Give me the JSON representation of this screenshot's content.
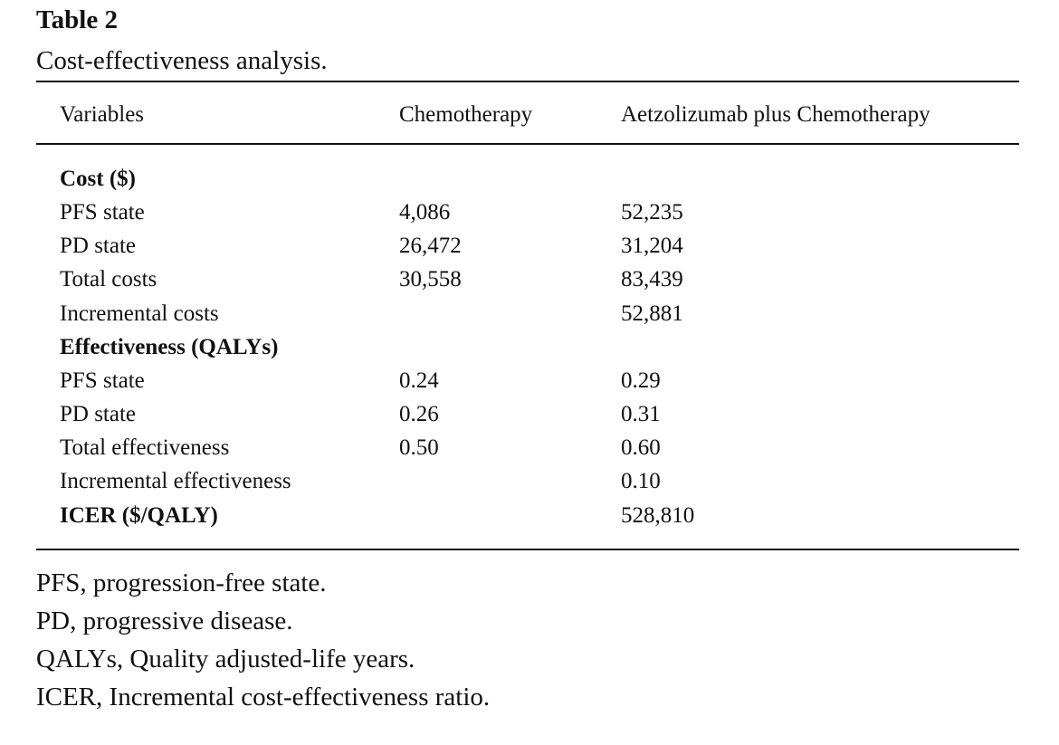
{
  "title": "Table 2",
  "caption": "Cost-effectiveness analysis.",
  "headers": {
    "variables": "Variables",
    "chemo": "Chemotherapy",
    "atezo": "Aetzolizumab plus Chemotherapy"
  },
  "sections": {
    "cost": "Cost ($)",
    "effectiveness": "Effectiveness (QALYs)",
    "icer": "ICER ($/QALY)"
  },
  "rows": {
    "cost_pfs": {
      "label": "PFS state",
      "chemo": "4,086",
      "atezo": "52,235"
    },
    "cost_pd": {
      "label": "PD state",
      "chemo": "26,472",
      "atezo": "31,204"
    },
    "cost_total": {
      "label": "Total costs",
      "chemo": "30,558",
      "atezo": "83,439"
    },
    "cost_incremental": {
      "label": "Incremental costs",
      "chemo": "",
      "atezo": "52,881"
    },
    "eff_pfs": {
      "label": "PFS state",
      "chemo": "0.24",
      "atezo": "0.29"
    },
    "eff_pd": {
      "label": "PD state",
      "chemo": "0.26",
      "atezo": "0.31"
    },
    "eff_total": {
      "label": "Total effectiveness",
      "chemo": "0.50",
      "atezo": "0.60"
    },
    "eff_incremental": {
      "label": "Incremental effectiveness",
      "chemo": "",
      "atezo": "0.10"
    },
    "icer": {
      "chemo": "",
      "atezo": "528,810"
    }
  },
  "footnotes": [
    "PFS, progression-free state.",
    "PD, progressive disease.",
    "QALYs, Quality adjusted-life years.",
    "ICER, Incremental cost-effectiveness ratio."
  ]
}
